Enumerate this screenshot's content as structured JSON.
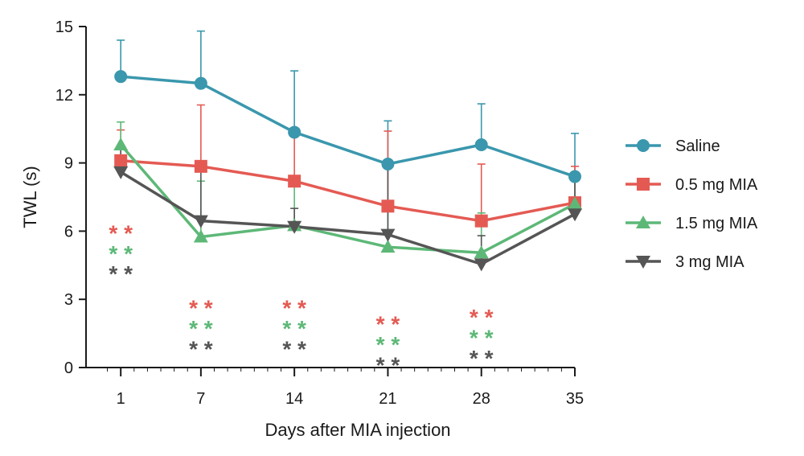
{
  "chart_data": {
    "type": "line",
    "xlabel": "Days after MIA injection",
    "ylabel": "TWL (s)",
    "ylim": [
      0,
      15
    ],
    "yticks": [
      0,
      3,
      6,
      9,
      12,
      15
    ],
    "x": [
      1,
      7,
      14,
      21,
      28,
      35
    ],
    "x_tick_labels": [
      "1",
      "7",
      "14",
      "21",
      "28",
      "35"
    ],
    "x_minor_tick_step": 1,
    "series": [
      {
        "name": "Saline",
        "color": "#3a97ad",
        "marker": "circle",
        "values": [
          12.8,
          12.5,
          10.35,
          8.95,
          9.8,
          8.4
        ],
        "errors": [
          1.6,
          2.3,
          2.7,
          1.9,
          1.8,
          1.9
        ]
      },
      {
        "name": "0.5 mg MIA",
        "color": "#e45a53",
        "marker": "square",
        "values": [
          9.1,
          8.85,
          8.2,
          7.1,
          6.45,
          7.25
        ],
        "errors": [
          1.35,
          2.7,
          2.0,
          3.3,
          2.5,
          1.6
        ]
      },
      {
        "name": "1.5 mg MIA",
        "color": "#5db877",
        "marker": "triangle-up",
        "values": [
          9.8,
          5.75,
          6.25,
          5.3,
          5.05,
          7.2
        ],
        "errors": [
          1.0,
          2.45,
          2.1,
          1.9,
          1.75,
          1.2
        ]
      },
      {
        "name": "3 mg MIA",
        "color": "#555555",
        "marker": "triangle-down",
        "values": [
          8.6,
          6.45,
          6.2,
          5.85,
          4.55,
          6.75
        ],
        "errors": [
          1.1,
          2.3,
          0.8,
          3.0,
          1.25,
          1.8
        ]
      }
    ],
    "legend_position": "right",
    "significance": [
      {
        "x": 1,
        "row_tops": [
          6.25,
          5.35,
          4.45
        ],
        "text": "* *",
        "colors": [
          "#e45a53",
          "#5db877",
          "#555555"
        ]
      },
      {
        "x": 7,
        "row_tops": [
          2.95,
          2.05,
          1.15
        ],
        "text": "* *",
        "colors": [
          "#e45a53",
          "#5db877",
          "#555555"
        ]
      },
      {
        "x": 14,
        "row_tops": [
          2.95,
          2.05,
          1.15
        ],
        "text": "* *",
        "colors": [
          "#e45a53",
          "#5db877",
          "#555555"
        ]
      },
      {
        "x": 21,
        "row_tops": [
          2.25,
          1.35,
          0.45
        ],
        "text": "* *",
        "colors": [
          "#e45a53",
          "#5db877",
          "#555555"
        ]
      },
      {
        "x": 28,
        "row_tops": [
          2.55,
          1.65,
          0.75
        ],
        "text": "* *",
        "colors": [
          "#e45a53",
          "#5db877",
          "#555555"
        ]
      }
    ]
  }
}
